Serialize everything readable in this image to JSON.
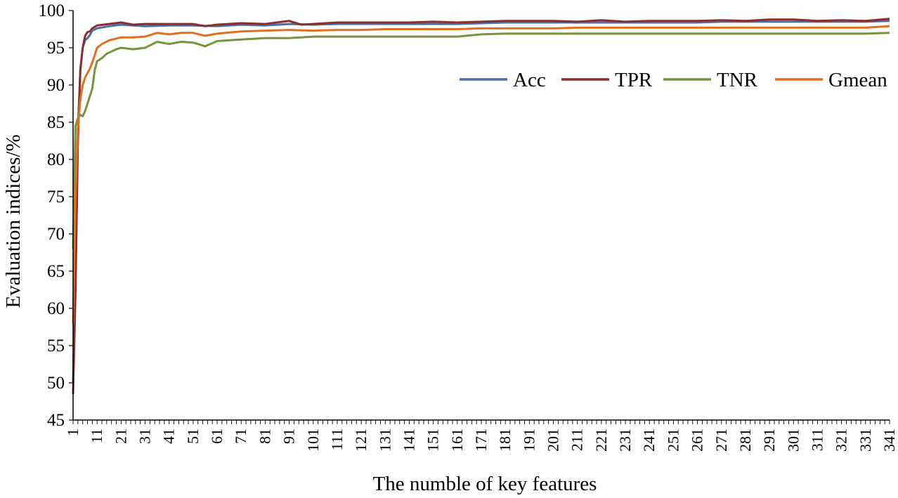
{
  "chart_data": {
    "type": "line",
    "title": "",
    "xlabel": "The numble of key features",
    "ylabel": "Evaluation indices/%",
    "ylim": [
      45,
      100
    ],
    "yticks": [
      45,
      50,
      55,
      60,
      65,
      70,
      75,
      80,
      85,
      90,
      95,
      100
    ],
    "xlim": [
      1,
      341
    ],
    "xticks": [
      1,
      11,
      21,
      31,
      41,
      51,
      61,
      71,
      81,
      91,
      101,
      111,
      121,
      131,
      141,
      151,
      161,
      171,
      181,
      191,
      201,
      211,
      221,
      231,
      241,
      251,
      261,
      271,
      281,
      291,
      301,
      311,
      321,
      331,
      341
    ],
    "grid": false,
    "legend_position": "top-right",
    "series": [
      {
        "name": "Acc",
        "color": "#4a6fa5",
        "points": [
          [
            1,
            50
          ],
          [
            2,
            66
          ],
          [
            3,
            84
          ],
          [
            4,
            92
          ],
          [
            5,
            95
          ],
          [
            6,
            96
          ],
          [
            7,
            96.3
          ],
          [
            8,
            96.7
          ],
          [
            9,
            97.3
          ],
          [
            11,
            97.6
          ],
          [
            16,
            97.9
          ],
          [
            21,
            98.1
          ],
          [
            31,
            97.9
          ],
          [
            41,
            98
          ],
          [
            51,
            98
          ],
          [
            61,
            97.9
          ],
          [
            71,
            98.1
          ],
          [
            81,
            98
          ],
          [
            91,
            98.2
          ],
          [
            101,
            98.1
          ],
          [
            111,
            98.2
          ],
          [
            121,
            98.2
          ],
          [
            131,
            98.2
          ],
          [
            141,
            98.2
          ],
          [
            151,
            98.2
          ],
          [
            161,
            98.2
          ],
          [
            171,
            98.3
          ],
          [
            181,
            98.4
          ],
          [
            191,
            98.4
          ],
          [
            201,
            98.4
          ],
          [
            211,
            98.4
          ],
          [
            221,
            98.4
          ],
          [
            231,
            98.4
          ],
          [
            241,
            98.4
          ],
          [
            251,
            98.4
          ],
          [
            261,
            98.4
          ],
          [
            271,
            98.5
          ],
          [
            281,
            98.5
          ],
          [
            291,
            98.5
          ],
          [
            301,
            98.5
          ],
          [
            311,
            98.5
          ],
          [
            321,
            98.5
          ],
          [
            331,
            98.5
          ],
          [
            341,
            98.6
          ]
        ]
      },
      {
        "name": "TPR",
        "color": "#8b2e2e",
        "points": [
          [
            1,
            48.5
          ],
          [
            2,
            62
          ],
          [
            3,
            82
          ],
          [
            4,
            92
          ],
          [
            5,
            95
          ],
          [
            6,
            96.6
          ],
          [
            7,
            97.1
          ],
          [
            8,
            97.2
          ],
          [
            9,
            97.6
          ],
          [
            11,
            98
          ],
          [
            16,
            98.2
          ],
          [
            21,
            98.4
          ],
          [
            26,
            98.1
          ],
          [
            31,
            98.2
          ],
          [
            41,
            98.2
          ],
          [
            51,
            98.2
          ],
          [
            56,
            97.9
          ],
          [
            61,
            98.1
          ],
          [
            71,
            98.3
          ],
          [
            81,
            98.2
          ],
          [
            91,
            98.6
          ],
          [
            96,
            98.1
          ],
          [
            101,
            98.2
          ],
          [
            111,
            98.4
          ],
          [
            121,
            98.4
          ],
          [
            131,
            98.4
          ],
          [
            141,
            98.4
          ],
          [
            151,
            98.5
          ],
          [
            161,
            98.4
          ],
          [
            171,
            98.5
          ],
          [
            181,
            98.6
          ],
          [
            191,
            98.6
          ],
          [
            201,
            98.6
          ],
          [
            211,
            98.5
          ],
          [
            221,
            98.7
          ],
          [
            231,
            98.5
          ],
          [
            241,
            98.6
          ],
          [
            251,
            98.6
          ],
          [
            261,
            98.6
          ],
          [
            271,
            98.7
          ],
          [
            281,
            98.6
          ],
          [
            291,
            98.8
          ],
          [
            301,
            98.8
          ],
          [
            311,
            98.6
          ],
          [
            321,
            98.7
          ],
          [
            331,
            98.6
          ],
          [
            341,
            98.9
          ]
        ]
      },
      {
        "name": "TNR",
        "color": "#77933c",
        "points": [
          [
            1,
            68
          ],
          [
            2,
            84.5
          ],
          [
            3,
            85.5
          ],
          [
            4,
            86
          ],
          [
            5,
            85.8
          ],
          [
            6,
            86.5
          ],
          [
            7,
            87.5
          ],
          [
            8,
            88.5
          ],
          [
            9,
            89.5
          ],
          [
            10,
            92
          ],
          [
            11,
            93.2
          ],
          [
            13,
            93.6
          ],
          [
            15,
            94.2
          ],
          [
            17,
            94.5
          ],
          [
            19,
            94.8
          ],
          [
            21,
            95
          ],
          [
            26,
            94.8
          ],
          [
            31,
            95
          ],
          [
            36,
            95.8
          ],
          [
            41,
            95.5
          ],
          [
            46,
            95.8
          ],
          [
            51,
            95.7
          ],
          [
            56,
            95.2
          ],
          [
            61,
            95.9
          ],
          [
            71,
            96.1
          ],
          [
            81,
            96.3
          ],
          [
            91,
            96.3
          ],
          [
            101,
            96.5
          ],
          [
            111,
            96.5
          ],
          [
            121,
            96.5
          ],
          [
            131,
            96.5
          ],
          [
            141,
            96.5
          ],
          [
            151,
            96.5
          ],
          [
            161,
            96.5
          ],
          [
            171,
            96.8
          ],
          [
            181,
            96.9
          ],
          [
            191,
            96.9
          ],
          [
            201,
            96.9
          ],
          [
            211,
            96.9
          ],
          [
            221,
            96.9
          ],
          [
            231,
            96.9
          ],
          [
            241,
            96.9
          ],
          [
            251,
            96.9
          ],
          [
            261,
            96.9
          ],
          [
            271,
            96.9
          ],
          [
            281,
            96.9
          ],
          [
            291,
            96.9
          ],
          [
            301,
            96.9
          ],
          [
            311,
            96.9
          ],
          [
            321,
            96.9
          ],
          [
            331,
            96.9
          ],
          [
            341,
            97
          ]
        ]
      },
      {
        "name": "Gmean",
        "color": "#e0701f",
        "points": [
          [
            1,
            58
          ],
          [
            2,
            75
          ],
          [
            3,
            84
          ],
          [
            4,
            88
          ],
          [
            5,
            90
          ],
          [
            6,
            91
          ],
          [
            7,
            91.6
          ],
          [
            8,
            92.2
          ],
          [
            9,
            93
          ],
          [
            10,
            94
          ],
          [
            11,
            95
          ],
          [
            13,
            95.5
          ],
          [
            16,
            96
          ],
          [
            21,
            96.4
          ],
          [
            26,
            96.4
          ],
          [
            31,
            96.5
          ],
          [
            36,
            97
          ],
          [
            41,
            96.8
          ],
          [
            46,
            97
          ],
          [
            51,
            97
          ],
          [
            56,
            96.6
          ],
          [
            61,
            96.9
          ],
          [
            71,
            97.2
          ],
          [
            81,
            97.3
          ],
          [
            91,
            97.4
          ],
          [
            101,
            97.3
          ],
          [
            111,
            97.4
          ],
          [
            121,
            97.4
          ],
          [
            131,
            97.5
          ],
          [
            141,
            97.5
          ],
          [
            151,
            97.5
          ],
          [
            161,
            97.5
          ],
          [
            171,
            97.6
          ],
          [
            181,
            97.6
          ],
          [
            191,
            97.6
          ],
          [
            201,
            97.6
          ],
          [
            211,
            97.7
          ],
          [
            221,
            97.7
          ],
          [
            231,
            97.7
          ],
          [
            241,
            97.7
          ],
          [
            251,
            97.7
          ],
          [
            261,
            97.7
          ],
          [
            271,
            97.7
          ],
          [
            281,
            97.7
          ],
          [
            291,
            97.7
          ],
          [
            301,
            97.7
          ],
          [
            311,
            97.7
          ],
          [
            321,
            97.7
          ],
          [
            331,
            97.7
          ],
          [
            341,
            97.9
          ]
        ]
      }
    ]
  }
}
